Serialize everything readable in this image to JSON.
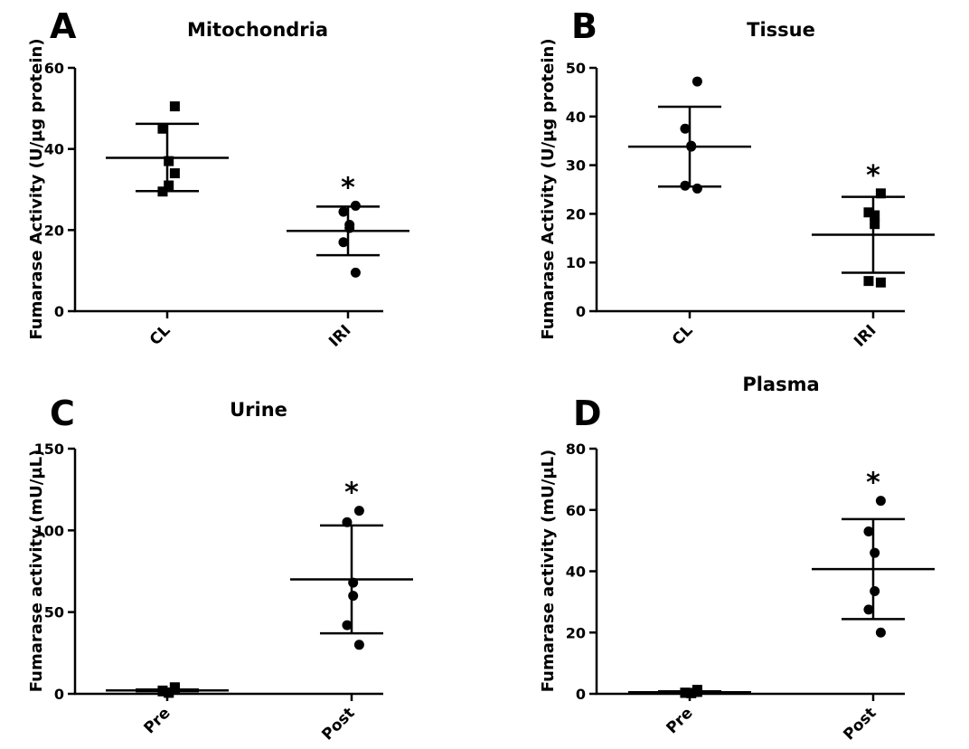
{
  "chart_data": [
    {
      "panel": "A",
      "type": "scatter",
      "title": "Mitochondria",
      "ylabel": "Fumarase Activity (U/µg protein)",
      "categories": [
        "CL",
        "IRI"
      ],
      "ylim": [
        0,
        60
      ],
      "yticks": [
        "0",
        "20",
        "40",
        "60"
      ],
      "series": [
        {
          "category": "CL",
          "marker": "square",
          "points": [
            50.5,
            45,
            37,
            31,
            29.5,
            34
          ],
          "mean": 37.8,
          "sd_upper": 46.2,
          "sd_lower": 29.6
        },
        {
          "category": "IRI",
          "marker": "circle",
          "points": [
            26,
            24.5,
            21.3,
            20.5,
            17,
            9.5
          ],
          "mean": 19.8,
          "sd_upper": 25.8,
          "sd_lower": 13.8,
          "significance": "*"
        }
      ]
    },
    {
      "panel": "B",
      "type": "scatter",
      "title": "Tissue",
      "ylabel": "Fumarase Activity (U/µg protein)",
      "categories": [
        "CL",
        "IRI"
      ],
      "ylim": [
        0,
        50
      ],
      "yticks": [
        "0",
        "10",
        "20",
        "30",
        "40",
        "50"
      ],
      "series": [
        {
          "category": "CL",
          "marker": "circle",
          "points": [
            47.2,
            37.5,
            34,
            33.8,
            25.8,
            25.2
          ],
          "mean": 33.8,
          "sd_upper": 42,
          "sd_lower": 25.6
        },
        {
          "category": "IRI",
          "marker": "square",
          "points": [
            24.2,
            20.3,
            19.7,
            17.9,
            6.2,
            5.9
          ],
          "mean": 15.7,
          "sd_upper": 23.5,
          "sd_lower": 7.9,
          "significance": "*"
        }
      ]
    },
    {
      "panel": "C",
      "type": "scatter",
      "title": "Urine",
      "ylabel": "Fumarase activity (mU/µL)",
      "categories": [
        "Pre",
        "Post"
      ],
      "ylim": [
        0,
        150
      ],
      "yticks": [
        "0",
        "50",
        "100",
        "150"
      ],
      "series": [
        {
          "category": "Pre",
          "marker": "square",
          "points": [
            3.5,
            1.5,
            0.8,
            0.6,
            2,
            4
          ],
          "mean": 2.1,
          "sd_upper": 2.6,
          "sd_lower": 1.6
        },
        {
          "category": "Post",
          "marker": "circle",
          "points": [
            112,
            105,
            68,
            60,
            42,
            30
          ],
          "mean": 70,
          "sd_upper": 103,
          "sd_lower": 37,
          "significance": "*"
        }
      ]
    },
    {
      "panel": "D",
      "type": "scatter",
      "title": "Plasma",
      "ylabel": "Fumarase activity (mU/µL)",
      "categories": [
        "Pre",
        "Post"
      ],
      "ylim": [
        0,
        80
      ],
      "yticks": [
        "0",
        "20",
        "40",
        "60",
        "80"
      ],
      "series": [
        {
          "category": "Pre",
          "marker": "square",
          "points": [
            0.6,
            0.3,
            0.2,
            0.3,
            0.4,
            1.3
          ],
          "mean": 0.5,
          "sd_upper": 0.8,
          "sd_lower": 0.2
        },
        {
          "category": "Post",
          "marker": "circle",
          "points": [
            63,
            53,
            46,
            33.5,
            27.5,
            20
          ],
          "mean": 40.7,
          "sd_upper": 57,
          "sd_lower": 24.4,
          "significance": "*"
        }
      ]
    }
  ]
}
